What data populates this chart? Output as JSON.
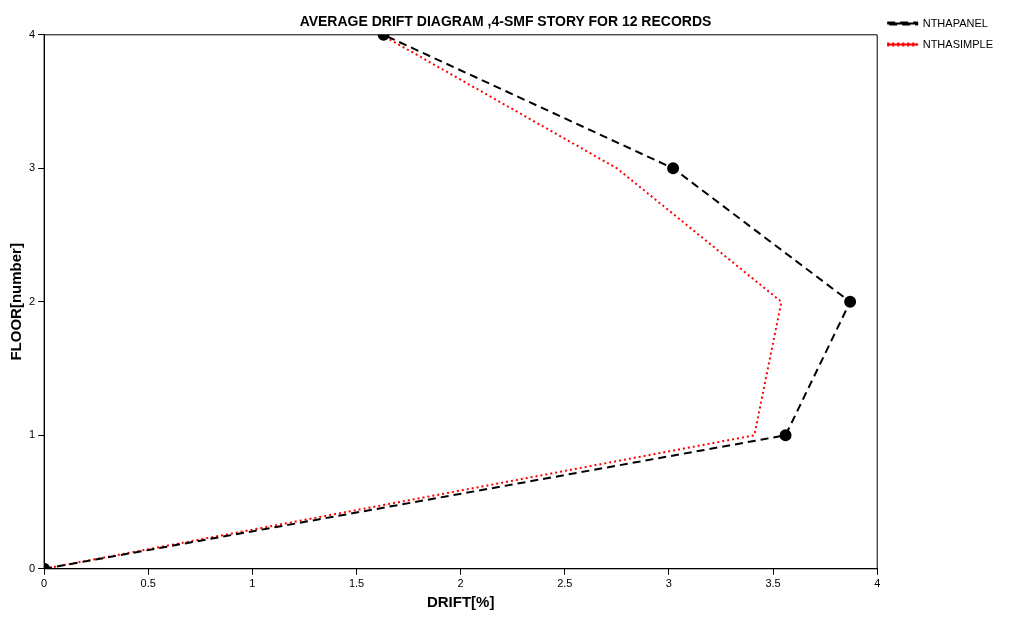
{
  "chart_data": {
    "type": "line",
    "title": "AVERAGE DRIFT DIAGRAM ,4-SMF STORY FOR 12 RECORDS",
    "xlabel": "DRIFT[%]",
    "ylabel": "FLOOR[number]",
    "series": [
      {
        "name": "NTHAPANEL",
        "color": "#000000",
        "x": [
          0,
          3.56,
          3.87,
          3.02,
          1.63
        ],
        "values": [
          0,
          1,
          2,
          3,
          4
        ],
        "marker": "circle",
        "line_style": "dashed"
      },
      {
        "name": "NTHASIMPLE",
        "color": "#ff0000",
        "x": [
          0,
          3.41,
          3.54,
          2.75,
          1.62
        ],
        "values": [
          0,
          1,
          2,
          3,
          4
        ],
        "marker": "none",
        "line_style": "dotted"
      }
    ],
    "xlim": [
      0,
      4
    ],
    "xticks": [
      0,
      0.5,
      1,
      1.5,
      2,
      2.5,
      3,
      3.5,
      4
    ],
    "ylim": [
      0,
      4
    ],
    "yticks": [
      0,
      1,
      2,
      3,
      4
    ],
    "grid": false,
    "legend": "top right"
  }
}
